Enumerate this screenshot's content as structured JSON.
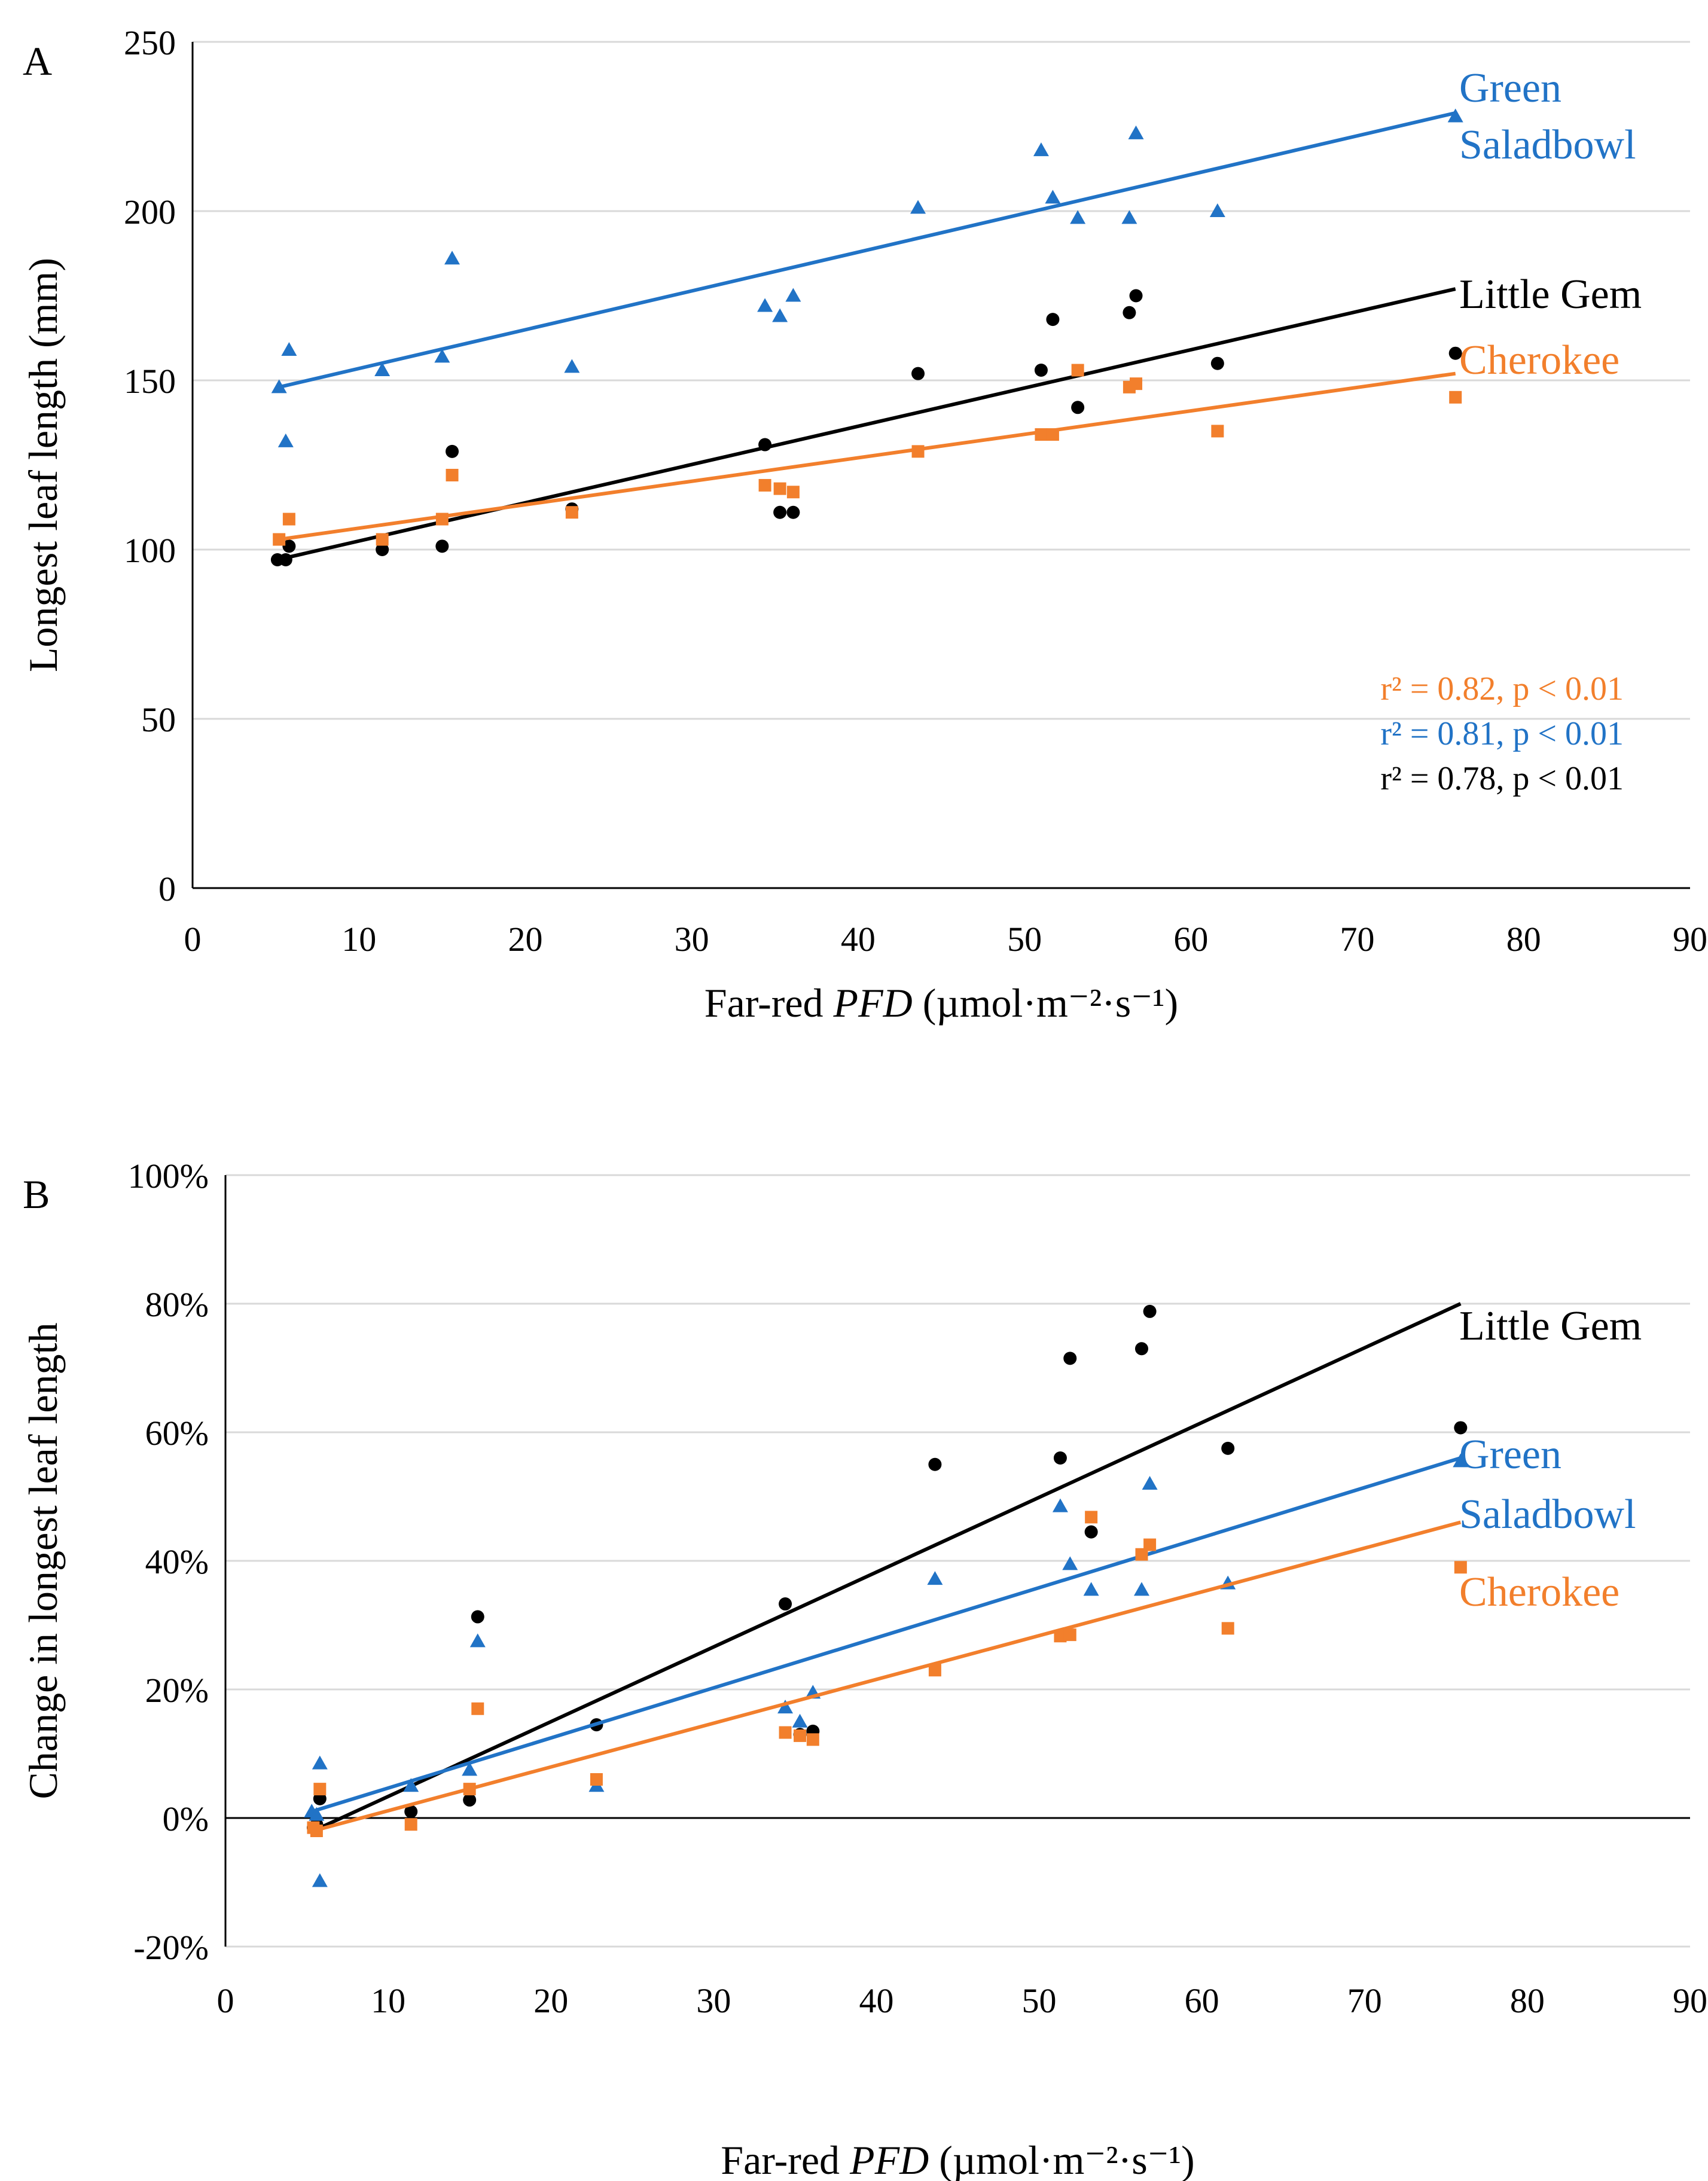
{
  "colors": {
    "black": "#000000",
    "blue": "#2173C6",
    "orange": "#F27F2C",
    "grid": "#D9D9D9",
    "axis": "#000000"
  },
  "chart_data": [
    {
      "panel_label": "A",
      "type": "scatter",
      "title": "",
      "xlabel_prefix": "Far-red ",
      "xlabel_italic": "PFD",
      "xlabel_suffix": " (µmol·m⁻²·s⁻¹)",
      "ylabel": "Longest  leaf length (mm)",
      "xlim": [
        0,
        90
      ],
      "ylim": [
        0,
        250
      ],
      "x_ticks": [
        0,
        10,
        20,
        30,
        40,
        50,
        60,
        70,
        80,
        90
      ],
      "y_ticks": [
        0,
        50,
        100,
        150,
        200,
        250
      ],
      "y_tick_labels": [
        "0",
        "50",
        "100",
        "150",
        "200",
        "250"
      ],
      "grid": "horizontal",
      "series": [
        {
          "name": "Green Saladbowl",
          "label_lines": [
            "Green",
            "Saladbowl"
          ],
          "marker": "triangle",
          "color": "#2173C6",
          "points": [
            [
              5.2,
              148
            ],
            [
              5.6,
              132
            ],
            [
              5.8,
              159
            ],
            [
              11.4,
              153
            ],
            [
              15.0,
              157
            ],
            [
              15.6,
              186
            ],
            [
              22.8,
              154
            ],
            [
              34.4,
              172
            ],
            [
              35.3,
              169
            ],
            [
              36.1,
              175
            ],
            [
              43.6,
              201
            ],
            [
              51.0,
              218
            ],
            [
              51.7,
              204
            ],
            [
              53.2,
              198
            ],
            [
              56.3,
              198
            ],
            [
              56.7,
              223
            ],
            [
              61.6,
              200
            ],
            [
              75.9,
              228
            ]
          ],
          "fit": [
            [
              5.2,
              148
            ],
            [
              75.9,
              229
            ]
          ]
        },
        {
          "name": "Little Gem",
          "label_lines": [
            "Little Gem"
          ],
          "marker": "circle",
          "color": "#000000",
          "points": [
            [
              5.1,
              97
            ],
            [
              5.6,
              97
            ],
            [
              5.8,
              101
            ],
            [
              11.4,
              100
            ],
            [
              15.0,
              101
            ],
            [
              15.6,
              129
            ],
            [
              22.8,
              112
            ],
            [
              34.4,
              131
            ],
            [
              35.3,
              111
            ],
            [
              36.1,
              111
            ],
            [
              43.6,
              152
            ],
            [
              51.0,
              153
            ],
            [
              51.7,
              168
            ],
            [
              53.2,
              142
            ],
            [
              56.3,
              170
            ],
            [
              56.7,
              175
            ],
            [
              61.6,
              155
            ],
            [
              75.9,
              158
            ]
          ],
          "fit": [
            [
              5.1,
              97
            ],
            [
              75.9,
              177
            ]
          ]
        },
        {
          "name": "Cherokee",
          "label_lines": [
            "Cherokee"
          ],
          "marker": "square",
          "color": "#F27F2C",
          "points": [
            [
              5.2,
              103
            ],
            [
              5.8,
              109
            ],
            [
              11.4,
              103
            ],
            [
              15.0,
              109
            ],
            [
              15.6,
              122
            ],
            [
              22.8,
              111
            ],
            [
              34.4,
              119
            ],
            [
              35.3,
              118
            ],
            [
              36.1,
              117
            ],
            [
              43.6,
              129
            ],
            [
              51.0,
              134
            ],
            [
              51.7,
              134
            ],
            [
              53.2,
              153
            ],
            [
              56.3,
              148
            ],
            [
              56.7,
              149
            ],
            [
              61.6,
              135
            ],
            [
              75.9,
              145
            ]
          ],
          "fit": [
            [
              5.2,
              103
            ],
            [
              75.9,
              152
            ]
          ]
        }
      ],
      "stats": [
        {
          "text": "r² = 0.82, p < 0.01",
          "color": "#F27F2C"
        },
        {
          "text": "r² = 0.81, p < 0.01",
          "color": "#2173C6"
        },
        {
          "text": "r² = 0.78, p < 0.01",
          "color": "#000000"
        }
      ]
    },
    {
      "panel_label": "B",
      "type": "scatter",
      "title": "",
      "xlabel_prefix": "Far-red ",
      "xlabel_italic": "PFD",
      "xlabel_suffix": " (µmol·m⁻²·s⁻¹)",
      "ylabel": "Change  in longest  leaf length",
      "xlim": [
        0,
        90
      ],
      "ylim": [
        -20,
        100
      ],
      "x_ticks": [
        0,
        10,
        20,
        30,
        40,
        50,
        60,
        70,
        80,
        90
      ],
      "y_ticks": [
        -20,
        0,
        20,
        40,
        60,
        80,
        100
      ],
      "y_tick_labels": [
        "-20%",
        "0%",
        "20%",
        "40%",
        "60%",
        "80%",
        "100%"
      ],
      "grid": "horizontal",
      "series": [
        {
          "name": "Little Gem",
          "label_lines": [
            "Little Gem"
          ],
          "marker": "circle",
          "color": "#000000",
          "points": [
            [
              5.4,
              -1.5
            ],
            [
              5.6,
              -1.0
            ],
            [
              5.8,
              3.0
            ],
            [
              11.4,
              1.0
            ],
            [
              15.0,
              2.8
            ],
            [
              15.5,
              31.3
            ],
            [
              22.8,
              14.5
            ],
            [
              34.4,
              33.3
            ],
            [
              35.3,
              13.0
            ],
            [
              36.1,
              13.5
            ],
            [
              43.6,
              55.0
            ],
            [
              51.3,
              56.0
            ],
            [
              51.9,
              71.5
            ],
            [
              53.2,
              44.5
            ],
            [
              56.3,
              73.0
            ],
            [
              56.8,
              78.8
            ],
            [
              61.6,
              57.5
            ],
            [
              75.9,
              60.7
            ]
          ],
          "fit": [
            [
              5.4,
              -2
            ],
            [
              75.9,
              80
            ]
          ]
        },
        {
          "name": "Green Saladbowl",
          "label_lines": [
            "Green",
            "Saladbowl"
          ],
          "marker": "triangle",
          "color": "#2173C6",
          "points": [
            [
              5.3,
              1.0
            ],
            [
              5.6,
              0.5
            ],
            [
              5.8,
              8.5
            ],
            [
              5.8,
              -9.8
            ],
            [
              11.4,
              5.0
            ],
            [
              15.0,
              7.5
            ],
            [
              15.5,
              27.5
            ],
            [
              22.8,
              5.0
            ],
            [
              34.4,
              17.2
            ],
            [
              35.3,
              15.0
            ],
            [
              36.1,
              19.5
            ],
            [
              43.6,
              37.2
            ],
            [
              51.3,
              48.5
            ],
            [
              51.9,
              39.5
            ],
            [
              53.2,
              35.5
            ],
            [
              56.3,
              35.5
            ],
            [
              56.8,
              52.0
            ],
            [
              61.6,
              36.5
            ],
            [
              75.9,
              55.5
            ]
          ],
          "fit": [
            [
              5.3,
              1
            ],
            [
              75.9,
              56
            ]
          ]
        },
        {
          "name": "Cherokee",
          "label_lines": [
            "Cherokee"
          ],
          "marker": "square",
          "color": "#F27F2C",
          "points": [
            [
              5.4,
              -1.5
            ],
            [
              5.6,
              -2.0
            ],
            [
              5.8,
              4.5
            ],
            [
              11.4,
              -1.0
            ],
            [
              15.0,
              4.5
            ],
            [
              15.5,
              17.0
            ],
            [
              22.8,
              6.0
            ],
            [
              34.4,
              13.3
            ],
            [
              35.3,
              12.8
            ],
            [
              36.1,
              12.2
            ],
            [
              43.6,
              23.0
            ],
            [
              51.3,
              28.3
            ],
            [
              51.9,
              28.5
            ],
            [
              53.2,
              46.8
            ],
            [
              56.3,
              41.0
            ],
            [
              56.8,
              42.5
            ],
            [
              61.6,
              29.5
            ],
            [
              75.9,
              39.0
            ]
          ],
          "fit": [
            [
              5.4,
              -2
            ],
            [
              75.9,
              46
            ]
          ]
        }
      ],
      "stats": []
    }
  ]
}
